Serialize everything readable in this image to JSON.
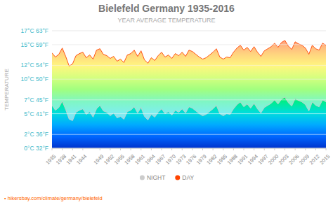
{
  "chart_data": {
    "type": "area",
    "title": "Bielefeld Germany 1935-2016",
    "subtitle": "YEAR AVERAGE TEMPERATURE",
    "y_label": "TEMPERATURE",
    "annotations": [
      "• hikersbay.com/climate/germany/bielefeld"
    ],
    "x": [
      1935,
      1936,
      1937,
      1938,
      1939,
      1940,
      1941,
      1942,
      1943,
      1944,
      1945,
      1946,
      1947,
      1948,
      1949,
      1950,
      1951,
      1952,
      1953,
      1954,
      1955,
      1956,
      1957,
      1958,
      1959,
      1960,
      1961,
      1962,
      1963,
      1964,
      1965,
      1966,
      1967,
      1968,
      1969,
      1970,
      1971,
      1972,
      1973,
      1974,
      1975,
      1976,
      1977,
      1978,
      1979,
      1980,
      1981,
      1982,
      1983,
      1984,
      1985,
      1986,
      1987,
      1988,
      1989,
      1990,
      1991,
      1992,
      1993,
      1994,
      1995,
      1996,
      1997,
      1998,
      1999,
      2000,
      2001,
      2002,
      2003,
      2004,
      2005,
      2006,
      2007,
      2008,
      2009,
      2010,
      2011,
      2012,
      2013,
      2014,
      2015
    ],
    "series": [
      {
        "name": "NIGHT",
        "color": "#cccccc",
        "values": [
          6.2,
          5.5,
          5.9,
          6.8,
          5.6,
          4.2,
          4.0,
          5.2,
          5.5,
          5.7,
          4.9,
          5.3,
          4.5,
          5.7,
          6.2,
          5.4,
          5.2,
          4.7,
          5.1,
          4.4,
          4.6,
          4.2,
          5.3,
          5.5,
          6.0,
          5.1,
          5.9,
          4.6,
          4.1,
          4.9,
          4.5,
          5.2,
          5.7,
          5.0,
          5.3,
          4.8,
          5.5,
          5.2,
          5.7,
          5.1,
          6.0,
          5.8,
          5.4,
          5.0,
          4.7,
          4.9,
          5.3,
          5.7,
          6.2,
          5.0,
          4.7,
          5.0,
          4.9,
          5.7,
          6.3,
          6.7,
          6.0,
          6.4,
          5.8,
          6.5,
          5.7,
          5.1,
          5.9,
          6.2,
          6.5,
          7.0,
          6.4,
          7.1,
          7.4,
          6.6,
          6.1,
          7.2,
          6.9,
          6.7,
          6.3,
          5.4,
          6.7,
          6.2,
          6.0,
          7.0,
          6.7
        ]
      },
      {
        "name": "DAY",
        "color": "#ff4400",
        "values": [
          13.8,
          13.2,
          13.6,
          14.5,
          13.3,
          11.9,
          12.2,
          13.4,
          13.7,
          13.9,
          13.1,
          13.5,
          12.9,
          14.2,
          14.4,
          13.6,
          13.4,
          13.0,
          13.3,
          12.6,
          12.9,
          12.4,
          13.5,
          13.7,
          14.2,
          13.3,
          14.1,
          12.8,
          12.3,
          13.1,
          12.7,
          13.4,
          13.9,
          13.2,
          13.5,
          13.0,
          13.7,
          13.4,
          13.9,
          13.3,
          14.2,
          14.0,
          13.6,
          13.2,
          12.9,
          13.1,
          13.5,
          13.9,
          14.4,
          13.2,
          12.9,
          13.2,
          13.1,
          13.9,
          14.5,
          14.9,
          14.2,
          14.6,
          14.0,
          14.7,
          13.9,
          13.3,
          14.1,
          14.4,
          14.7,
          15.2,
          14.6,
          15.3,
          15.6,
          14.8,
          14.3,
          15.4,
          15.1,
          14.9,
          14.5,
          13.6,
          14.9,
          14.4,
          14.2,
          15.2,
          14.9
        ]
      }
    ],
    "xlim": [
      1935,
      2015
    ],
    "xticks": [
      1935,
      1938,
      1941,
      1944,
      1949,
      1952,
      1955,
      1958,
      1961,
      1964,
      1967,
      1970,
      1973,
      1976,
      1979,
      1982,
      1985,
      1988,
      1991,
      1994,
      1997,
      2000,
      2003,
      2006,
      2009,
      2012,
      2015
    ],
    "ylim": [
      0,
      17
    ],
    "yticks": [
      {
        "value": 0,
        "label": "0°C 32°F"
      },
      {
        "value": 2,
        "label": "2°C 36°F"
      },
      {
        "value": 5,
        "label": "5°C 41°F"
      },
      {
        "value": 7,
        "label": "7°C 45°F"
      },
      {
        "value": 10,
        "label": "10°C 50°F"
      },
      {
        "value": 12,
        "label": "12°C 54°F"
      },
      {
        "value": 15,
        "label": "15°C 59°F"
      },
      {
        "value": 17,
        "label": "17°C 63°F"
      }
    ],
    "grid": true,
    "legend": "bottom"
  }
}
